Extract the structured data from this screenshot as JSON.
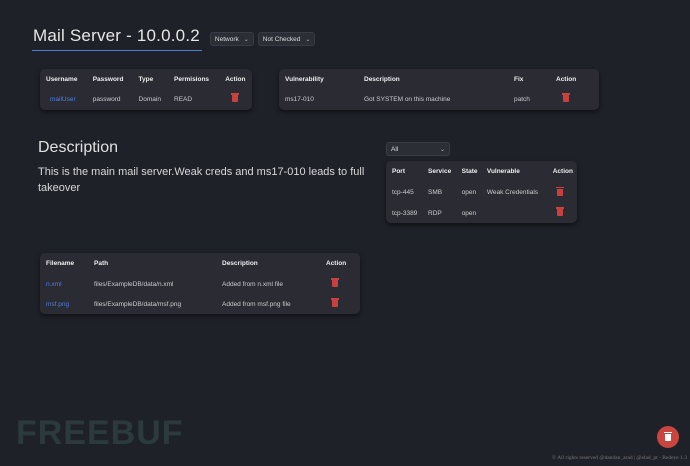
{
  "header": {
    "title": "Mail Server - 10.0.0.2",
    "type_select": "Network",
    "status_select": "Not Checked"
  },
  "users": {
    "columns": [
      "Username",
      "Password",
      "Type",
      "Permisions",
      "Action"
    ],
    "rows": [
      {
        "username": "mailUser",
        "password": "password",
        "type": "Domain",
        "permissions": "READ"
      }
    ]
  },
  "vulns": {
    "columns": [
      "Vulnerability",
      "Description",
      "Fix",
      "Action"
    ],
    "rows": [
      {
        "name": "ms17-010",
        "description": "Got SYSTEM on this machine",
        "fix": "patch"
      }
    ]
  },
  "description": {
    "title": "Description",
    "text": "This is the main mail server.Weak creds and ms17-010 leads to full takeover"
  },
  "ports": {
    "filter": "All",
    "columns": [
      "Port",
      "Service",
      "State",
      "Vulnerable",
      "Action"
    ],
    "rows": [
      {
        "port": "tcp-445",
        "service": "SMB",
        "state": "open",
        "vulnerable": "Weak Credentials"
      },
      {
        "port": "tcp-3389",
        "service": "RDP",
        "state": "open",
        "vulnerable": ""
      }
    ]
  },
  "files": {
    "columns": [
      "Filename",
      "Path",
      "Description",
      "Action"
    ],
    "rows": [
      {
        "filename": "n.xml",
        "path": "files/ExampleDB/data/n.xml",
        "description": "Added from n.xml file"
      },
      {
        "filename": "msf.png",
        "path": "files/ExampleDB/data/msf.png",
        "description": "Added from msf.png file"
      }
    ]
  },
  "footer": "© All rights reserved @dandan_arad | @elad_pt - Redeye 1.3",
  "watermark": "FREEBUF",
  "colors": {
    "background": "#1f2129",
    "card": "#2b2c33",
    "link": "#4d7ee0",
    "danger": "#c9413e"
  }
}
